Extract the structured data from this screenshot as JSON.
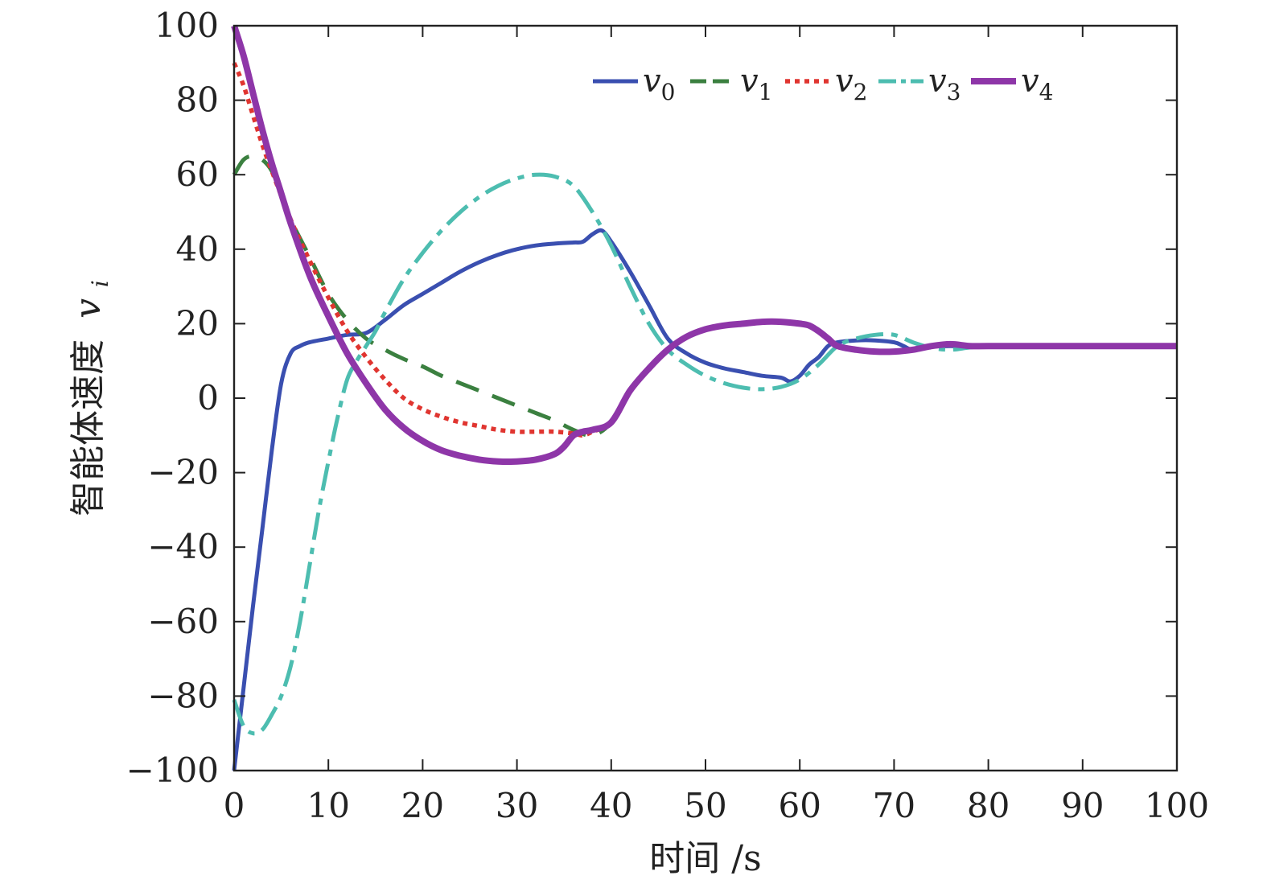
{
  "chart_data": {
    "type": "line",
    "xlabel": "时间 /s",
    "ylabel_text": "智能体速度",
    "ylabel_symbol": "v",
    "ylabel_subscript": "i",
    "xlim": [
      0,
      100
    ],
    "ylim": [
      -100,
      100
    ],
    "xticks": [
      0,
      10,
      20,
      30,
      40,
      50,
      60,
      70,
      80,
      90,
      100
    ],
    "yticks": [
      -100,
      -80,
      -60,
      -40,
      -20,
      0,
      20,
      40,
      60,
      80,
      100
    ],
    "xtick_labels": [
      "0",
      "10",
      "20",
      "30",
      "40",
      "50",
      "60",
      "70",
      "80",
      "90",
      "100"
    ],
    "ytick_labels": [
      "−100",
      "−80",
      "−60",
      "−40",
      "−20",
      "0",
      "20",
      "40",
      "60",
      "80",
      "100"
    ],
    "grid": false,
    "legend_position": "top-right",
    "series": [
      {
        "name": "v",
        "sub": "0",
        "color": "#3a4fb0",
        "style": "solid",
        "x": [
          0,
          1,
          2,
          3,
          4,
          5,
          6,
          7,
          8,
          10,
          12,
          14,
          16,
          18,
          20,
          22,
          24,
          26,
          28,
          30,
          32,
          34,
          36,
          37,
          38,
          39,
          40,
          42,
          44,
          46,
          48,
          50,
          52,
          54,
          56,
          58,
          59,
          60,
          61,
          62,
          63,
          64,
          66,
          68,
          70,
          71,
          72,
          74,
          76,
          78,
          80,
          85,
          90,
          95,
          100
        ],
        "y": [
          -100,
          -78,
          -56,
          -35,
          -14,
          4,
          12,
          14,
          15,
          16,
          17,
          17.5,
          21,
          25,
          28,
          31,
          34,
          36.5,
          38.5,
          40,
          41,
          41.5,
          41.8,
          42,
          44,
          45,
          42,
          34,
          25,
          16,
          12,
          9.5,
          8,
          7,
          6,
          5.5,
          4.5,
          6,
          9,
          11,
          14,
          15,
          15.5,
          15.5,
          15,
          14,
          13,
          13.8,
          14,
          13.8,
          14,
          14,
          14,
          14,
          14
        ]
      },
      {
        "name": "v",
        "sub": "1",
        "color": "#3b8040",
        "style": "dashed",
        "x": [
          0,
          1,
          2,
          3,
          4,
          5,
          6,
          8,
          10,
          12,
          14,
          16,
          18,
          20,
          22,
          24,
          26,
          28,
          30,
          32,
          34,
          36,
          38,
          40,
          42,
          44,
          46,
          48,
          50,
          52,
          54,
          56,
          58,
          60,
          61,
          62,
          63,
          64,
          66,
          68,
          70,
          72,
          74,
          76,
          78,
          80,
          85,
          90,
          95,
          100
        ],
        "y": [
          60,
          64,
          65,
          64,
          61,
          55,
          48,
          38,
          28,
          21,
          16,
          13,
          10.5,
          8.5,
          6,
          4,
          2,
          0,
          -2,
          -4,
          -6,
          -8.5,
          -10,
          -6.5,
          2,
          8,
          13,
          16.5,
          18.5,
          19.5,
          20,
          20.5,
          20.5,
          20,
          19.5,
          18,
          16,
          14,
          13,
          12.5,
          12.5,
          13,
          14,
          14.5,
          14,
          14,
          14,
          14,
          14,
          14
        ]
      },
      {
        "name": "v",
        "sub": "2",
        "color": "#e03530",
        "style": "dotted",
        "x": [
          0,
          1,
          2,
          3,
          4,
          6,
          8,
          10,
          12,
          14,
          16,
          18,
          20,
          22,
          24,
          26,
          28,
          30,
          32,
          34,
          36,
          37,
          38,
          40,
          42,
          44,
          46,
          48,
          50,
          52,
          54,
          56,
          58,
          60,
          61,
          62,
          63,
          64,
          66,
          68,
          70,
          72,
          74,
          76,
          78,
          80,
          85,
          90,
          95,
          100
        ],
        "y": [
          90,
          84,
          76,
          68,
          61,
          48,
          37,
          27,
          18,
          11,
          5,
          0,
          -3,
          -5,
          -6.5,
          -7.5,
          -8.5,
          -9,
          -9,
          -9,
          -9.5,
          -10,
          -9,
          -6.5,
          2,
          8,
          13,
          16.5,
          18.5,
          19.5,
          20,
          20.5,
          20.5,
          20,
          19.5,
          18,
          16,
          14,
          13,
          12.5,
          12.5,
          13,
          14,
          14.5,
          14,
          14,
          14,
          14,
          14,
          14
        ]
      },
      {
        "name": "v",
        "sub": "3",
        "color": "#4dbdb0",
        "style": "dashdot",
        "x": [
          0,
          1,
          2,
          3,
          4,
          5,
          6,
          7,
          8,
          9,
          10,
          11,
          12,
          13,
          14,
          15,
          16,
          18,
          20,
          22,
          24,
          26,
          28,
          30,
          32,
          34,
          36,
          38,
          40,
          42,
          44,
          46,
          48,
          50,
          52,
          54,
          56,
          58,
          60,
          62,
          64,
          66,
          68,
          70,
          72,
          74,
          76,
          78,
          80,
          85,
          90,
          95,
          100
        ],
        "y": [
          -81,
          -88,
          -90,
          -89,
          -85,
          -80,
          -72,
          -60,
          -45,
          -30,
          -17,
          -5,
          5,
          10,
          14,
          18,
          23,
          32,
          39,
          45,
          50,
          54,
          57,
          59,
          60,
          59.5,
          57,
          50,
          41,
          30,
          20,
          13,
          9,
          6,
          4,
          2.8,
          2.4,
          3,
          5,
          9,
          14,
          16,
          17,
          17,
          15,
          13.5,
          13,
          13.6,
          14,
          14,
          14,
          14,
          14
        ]
      },
      {
        "name": "v",
        "sub": "4",
        "color": "#8e36a8",
        "style": "solid-thick",
        "x": [
          0,
          1,
          2,
          3,
          4,
          5,
          6,
          8,
          10,
          12,
          14,
          16,
          18,
          20,
          22,
          24,
          26,
          28,
          30,
          32,
          34,
          35,
          36,
          37,
          38,
          40,
          42,
          44,
          46,
          48,
          50,
          52,
          54,
          56,
          58,
          60,
          61,
          62,
          63,
          64,
          66,
          68,
          70,
          72,
          74,
          76,
          78,
          80,
          85,
          90,
          95,
          100
        ],
        "y": [
          100,
          92,
          82,
          72,
          63,
          55,
          47,
          33,
          22,
          12,
          4,
          -3,
          -8,
          -11.5,
          -14,
          -15.5,
          -16.5,
          -17,
          -17,
          -16.5,
          -15,
          -13,
          -10,
          -9,
          -8.5,
          -6.5,
          2,
          8,
          13,
          16.5,
          18.5,
          19.5,
          20,
          20.5,
          20.5,
          20,
          19.5,
          18,
          16,
          14,
          13,
          12.5,
          12.5,
          13,
          14,
          14.5,
          14,
          14,
          14,
          14,
          14,
          14
        ]
      }
    ]
  }
}
